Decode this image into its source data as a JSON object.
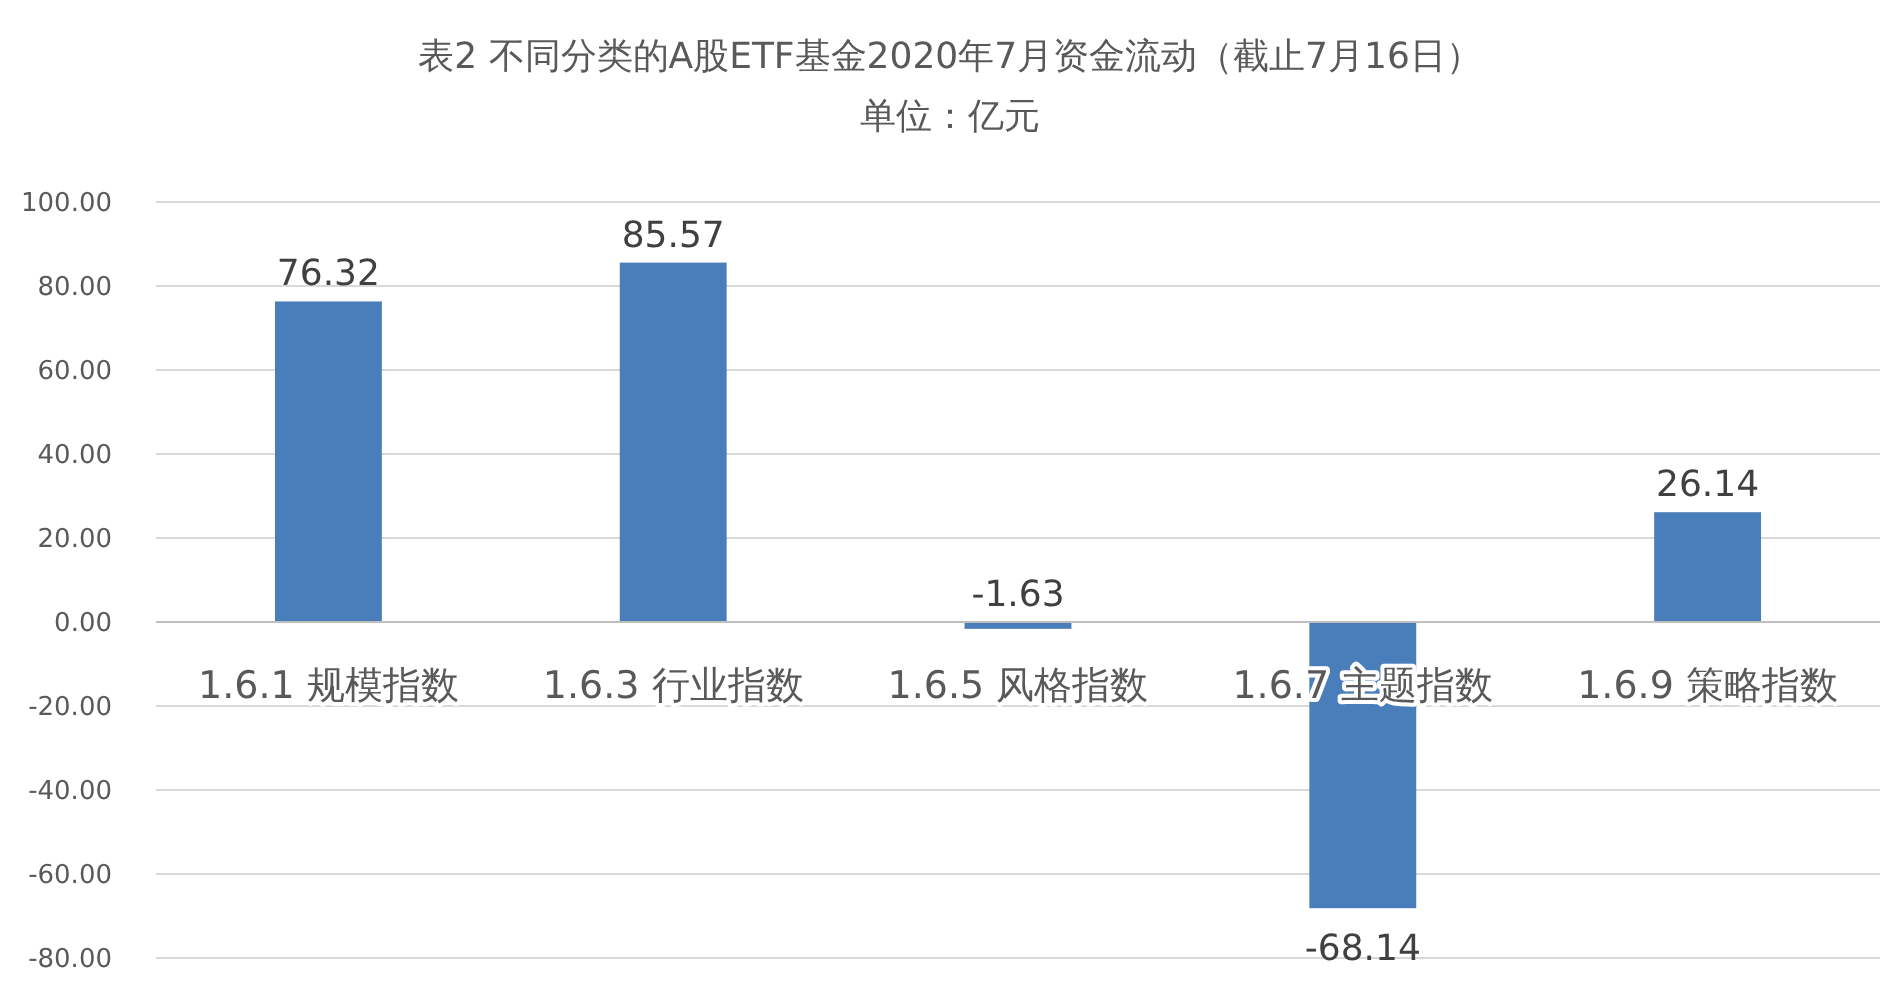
{
  "chart_data": {
    "type": "bar",
    "title": "表2  不同分类的A股ETF基金2020年7月资金流动（截止7月16日）",
    "subtitle": "单位：亿元",
    "categories": [
      "1.6.1 规模指数",
      "1.6.3 行业指数",
      "1.6.5 风格指数",
      "1.6.7 主题指数",
      "1.6.9 策略指数"
    ],
    "values": [
      76.32,
      85.57,
      -1.63,
      -68.14,
      26.14
    ],
    "color": "#4a7ebb",
    "data_labels": true,
    "ylim": [
      -80,
      100
    ],
    "yticks": [
      {
        "value": -80,
        "label": "-80.00"
      },
      {
        "value": -60,
        "label": "-60.00"
      },
      {
        "value": -40,
        "label": "-40.00"
      },
      {
        "value": -20,
        "label": "-20.00"
      },
      {
        "value": 0,
        "label": "0.00"
      },
      {
        "value": 20,
        "label": "20.00"
      },
      {
        "value": 40,
        "label": "40.00"
      },
      {
        "value": 60,
        "label": "60.00"
      },
      {
        "value": 80,
        "label": "80.00"
      },
      {
        "value": 100,
        "label": "100.00"
      }
    ],
    "grid": "y"
  }
}
